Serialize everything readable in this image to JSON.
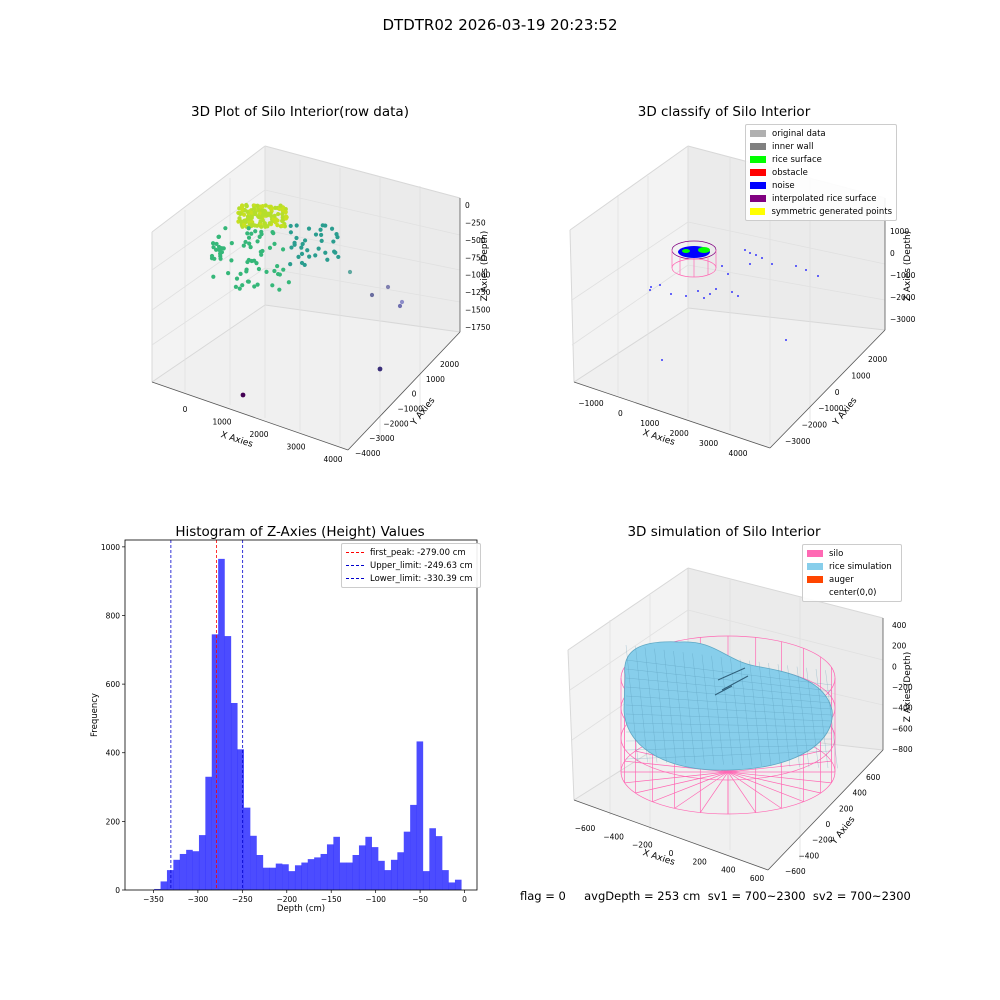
{
  "figure": {
    "suptitle": "DTDTR02 2026-03-19 20:23:52",
    "footer": "flag = 0     avgDepth = 253 cm  sv1 = 700~2300  sv2 = 700~2300"
  },
  "colors": {
    "histogram": "#0000ff",
    "first_peak": "#ff0000",
    "limits": "#0000cc",
    "silo": "#ff69b4",
    "rice": "#87ceeb",
    "auger": "#ff4500"
  },
  "panels": {
    "raw": {
      "title": "3D Plot of Silo Interior(row data)",
      "xlabel": "X Axies",
      "ylabel": "Y Axies",
      "zlabel": "Z Axies (Depth)",
      "xticks": [
        "0",
        "1000",
        "2000",
        "3000",
        "4000"
      ],
      "yticks": [
        "2000",
        "1000",
        "0",
        "−1000",
        "−2000",
        "−3000",
        "−4000"
      ],
      "zticks": [
        "0",
        "−250",
        "−500",
        "−750",
        "−1000",
        "−1250",
        "−1500",
        "−1750"
      ]
    },
    "classify": {
      "title": "3D classify of Silo Interior",
      "xlabel": "X Axies",
      "ylabel": "Y Axies",
      "zlabel": "Z Axies (Depth)",
      "xticks": [
        "−1000",
        "0",
        "1000",
        "2000",
        "3000",
        "4000"
      ],
      "yticks": [
        "2000",
        "1000",
        "0",
        "−1000",
        "−2000",
        "−3000"
      ],
      "zticks": [
        "1000",
        "0",
        "−1000",
        "−2000",
        "−3000"
      ],
      "legend": [
        {
          "label": "original data",
          "color": "#b0b0b0"
        },
        {
          "label": "inner wall",
          "color": "#808080"
        },
        {
          "label": "rice surface",
          "color": "#00ff00"
        },
        {
          "label": "obstacle",
          "color": "#ff0000"
        },
        {
          "label": "noise",
          "color": "#0000ff"
        },
        {
          "label": "interpolated rice surface",
          "color": "#800080"
        },
        {
          "label": "symmetric generated points",
          "color": "#ffff00"
        }
      ]
    },
    "simulation": {
      "title": "3D simulation of Silo Interior",
      "xlabel": "X Axies",
      "ylabel": "Y Axies",
      "zlabel": "Z Axies (Depth)",
      "xticks": [
        "−600",
        "−400",
        "−200",
        "0",
        "200",
        "400",
        "600"
      ],
      "yticks": [
        "600",
        "400",
        "200",
        "0",
        "−200",
        "−400",
        "−600"
      ],
      "zticks": [
        "400",
        "200",
        "0",
        "−200",
        "−400",
        "−600",
        "−800"
      ],
      "legend": [
        {
          "label": "silo",
          "color": "#ff69b4"
        },
        {
          "label": "rice simulation",
          "color": "#87ceeb"
        },
        {
          "label": "auger",
          "color": "#ff4500"
        },
        {
          "label": "center(0,0)",
          "color": ""
        }
      ]
    }
  },
  "chart_data": {
    "type": "bar",
    "title": "Histogram of Z-Axies (Height) Values",
    "xlabel": "Depth (cm)",
    "ylabel": "Frequency",
    "xlim": [
      -382,
      14
    ],
    "ylim": [
      0,
      1020
    ],
    "xticks": [
      -350,
      -300,
      -250,
      -200,
      -150,
      -100,
      -50,
      0
    ],
    "yticks": [
      0,
      200,
      400,
      600,
      800,
      1000
    ],
    "bin_width": 7.2,
    "bins_start": [
      -349.2,
      -342.0,
      -334.8,
      -327.6,
      -320.4,
      -313.2,
      -306.0,
      -298.8,
      -291.6,
      -284.4,
      -277.2,
      -270.0,
      -262.8,
      -255.6,
      -248.4,
      -241.2,
      -234.0,
      -226.8,
      -219.6,
      -212.4,
      -205.2,
      -198.0,
      -190.8,
      -183.6,
      -176.4,
      -169.2,
      -162.0,
      -154.8,
      -147.6,
      -140.4,
      -133.2,
      -126.0,
      -118.8,
      -111.6,
      -104.4,
      -97.2,
      -90.0,
      -82.8,
      -75.6,
      -68.4,
      -61.2,
      -54.0,
      -46.8,
      -39.6,
      -32.4,
      -25.2,
      -18.0,
      -10.8,
      -3.6
    ],
    "values": [
      3,
      25,
      58,
      88,
      105,
      117,
      113,
      160,
      330,
      745,
      965,
      740,
      545,
      410,
      240,
      158,
      102,
      65,
      65,
      77,
      75,
      55,
      72,
      80,
      90,
      95,
      105,
      133,
      155,
      80,
      80,
      102,
      130,
      155,
      125,
      85,
      58,
      88,
      110,
      170,
      248,
      433,
      55,
      180,
      157,
      58,
      22,
      30,
      0
    ],
    "vlines": [
      {
        "name": "first_peak: -279.00 cm",
        "x": -279.0,
        "color": "#ff0000"
      },
      {
        "name": "Upper_limit: -249.63 cm",
        "x": -249.63,
        "color": "#0000cc"
      },
      {
        "name": "Lower_limit: -330.39 cm",
        "x": -330.39,
        "color": "#0000cc"
      }
    ],
    "legend_position": "top-right"
  }
}
